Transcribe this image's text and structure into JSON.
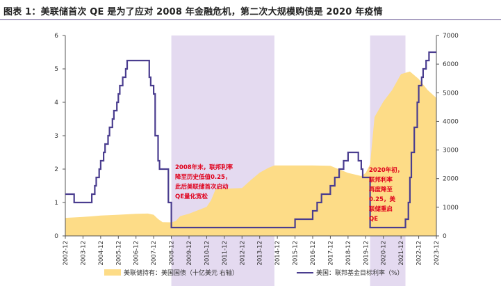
{
  "title": "图表 1：美联储首次 QE 是为了应对 2008 年金融危机，第二次大规模购债是 2020 年疫情",
  "colors": {
    "area": "#fddc87",
    "line": "#4a3d8f",
    "shade": "#e4daf0",
    "annotation": "#e0001b",
    "axis": "#555555",
    "title_rule": "#5a4a8a"
  },
  "chart_data": {
    "type": "area+line",
    "title": "图表 1：美联储首次 QE 是为了应对 2008 年金融危机，第二次大规模购债是 2020 年疫情",
    "x_range": [
      "2002-12",
      "2023-12"
    ],
    "x_ticks": [
      "2002-12",
      "2003-12",
      "2004-12",
      "2005-12",
      "2006-12",
      "2007-12",
      "2008-12",
      "2009-12",
      "2010-12",
      "2011-12",
      "2012-12",
      "2013-12",
      "2014-12",
      "2015-12",
      "2016-12",
      "2017-12",
      "2018-12",
      "2019-12",
      "2020-12",
      "2021-12",
      "2022-12",
      "2023-12"
    ],
    "y_left": {
      "range": [
        0,
        6
      ],
      "ticks": [
        0,
        1,
        2,
        3,
        4,
        5,
        6
      ]
    },
    "y_right": {
      "range": [
        0,
        7000
      ],
      "ticks": [
        0,
        1000,
        2000,
        3000,
        4000,
        5000,
        6000,
        7000
      ]
    },
    "shaded_periods": [
      [
        "2008-12",
        "2014-10"
      ],
      [
        "2020-03",
        "2022-03"
      ]
    ],
    "grid": false,
    "legend_position": "bottom",
    "series": [
      {
        "name": "美联储持有：美国国债（十亿美元 右轴）",
        "axis": "right",
        "kind": "area",
        "points": [
          [
            "2002-12",
            630
          ],
          [
            "2003-12",
            660
          ],
          [
            "2004-12",
            710
          ],
          [
            "2005-12",
            740
          ],
          [
            "2006-12",
            770
          ],
          [
            "2007-08",
            780
          ],
          [
            "2007-12",
            740
          ],
          [
            "2008-03",
            590
          ],
          [
            "2008-06",
            480
          ],
          [
            "2008-12",
            475
          ],
          [
            "2009-03",
            520
          ],
          [
            "2009-06",
            690
          ],
          [
            "2009-12",
            775
          ],
          [
            "2010-12",
            1015
          ],
          [
            "2011-03",
            1250
          ],
          [
            "2011-06",
            1620
          ],
          [
            "2011-12",
            1650
          ],
          [
            "2012-12",
            1670
          ],
          [
            "2013-06",
            1950
          ],
          [
            "2013-12",
            2210
          ],
          [
            "2014-06",
            2380
          ],
          [
            "2014-10",
            2460
          ],
          [
            "2015-12",
            2460
          ],
          [
            "2016-12",
            2460
          ],
          [
            "2017-12",
            2450
          ],
          [
            "2018-12",
            2200
          ],
          [
            "2019-09",
            2090
          ],
          [
            "2019-12",
            2200
          ],
          [
            "2020-03",
            2500
          ],
          [
            "2020-06",
            4150
          ],
          [
            "2020-12",
            4690
          ],
          [
            "2021-06",
            5100
          ],
          [
            "2021-12",
            5650
          ],
          [
            "2022-06",
            5740
          ],
          [
            "2022-12",
            5480
          ],
          [
            "2023-06",
            5100
          ],
          [
            "2023-12",
            4820
          ]
        ]
      },
      {
        "name": "美国：联邦基金目标利率（%）",
        "axis": "left",
        "kind": "step-line",
        "points": [
          [
            "2002-12",
            1.25
          ],
          [
            "2003-06",
            1.0
          ],
          [
            "2004-06",
            1.25
          ],
          [
            "2004-08",
            1.5
          ],
          [
            "2004-09",
            1.75
          ],
          [
            "2004-11",
            2.0
          ],
          [
            "2004-12",
            2.25
          ],
          [
            "2005-02",
            2.5
          ],
          [
            "2005-03",
            2.75
          ],
          [
            "2005-05",
            3.0
          ],
          [
            "2005-06",
            3.25
          ],
          [
            "2005-08",
            3.5
          ],
          [
            "2005-09",
            3.75
          ],
          [
            "2005-11",
            4.0
          ],
          [
            "2005-12",
            4.25
          ],
          [
            "2006-01",
            4.5
          ],
          [
            "2006-03",
            4.75
          ],
          [
            "2006-05",
            5.0
          ],
          [
            "2006-06",
            5.25
          ],
          [
            "2007-09",
            4.75
          ],
          [
            "2007-10",
            4.5
          ],
          [
            "2007-12",
            4.25
          ],
          [
            "2008-01",
            3.0
          ],
          [
            "2008-03",
            2.25
          ],
          [
            "2008-04",
            2.0
          ],
          [
            "2008-10",
            1.0
          ],
          [
            "2008-12",
            0.25
          ],
          [
            "2015-12",
            0.5
          ],
          [
            "2016-12",
            0.75
          ],
          [
            "2017-03",
            1.0
          ],
          [
            "2017-06",
            1.25
          ],
          [
            "2017-12",
            1.5
          ],
          [
            "2018-03",
            1.75
          ],
          [
            "2018-06",
            2.0
          ],
          [
            "2018-09",
            2.25
          ],
          [
            "2018-12",
            2.5
          ],
          [
            "2019-07",
            2.25
          ],
          [
            "2019-09",
            2.0
          ],
          [
            "2019-10",
            1.75
          ],
          [
            "2020-03",
            0.25
          ],
          [
            "2022-03",
            0.5
          ],
          [
            "2022-05",
            1.0
          ],
          [
            "2022-06",
            1.75
          ],
          [
            "2022-07",
            2.5
          ],
          [
            "2022-09",
            3.25
          ],
          [
            "2022-11",
            4.0
          ],
          [
            "2022-12",
            4.5
          ],
          [
            "2023-02",
            4.75
          ],
          [
            "2023-03",
            5.0
          ],
          [
            "2023-05",
            5.25
          ],
          [
            "2023-07",
            5.5
          ],
          [
            "2023-12",
            5.5
          ]
        ]
      }
    ],
    "annotations": [
      {
        "lines": [
          "2008年末，联邦利率",
          "降至历史低值0.25，",
          "此后美联储首次启动",
          "QE量化宽松"
        ]
      },
      {
        "lines": [
          "2020年初，",
          "联邦利率",
          "再度降至",
          "0.25，美",
          "联储重启",
          "QE"
        ]
      }
    ],
    "legend": [
      {
        "label": "美联储持有：美国国债（十亿美元 右轴）",
        "kind": "area"
      },
      {
        "label": "美国：联邦基金目标利率（%）",
        "kind": "line"
      }
    ]
  }
}
